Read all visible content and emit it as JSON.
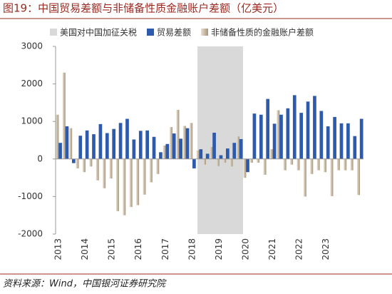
{
  "chart_data": {
    "type": "bar",
    "title": "图19：中国贸易差额与非储备性质金融账户差额（亿美元）",
    "source": "资料来源：Wind，中国银河证券研究院",
    "x": [
      2013,
      2013.25,
      2013.5,
      2013.75,
      2014,
      2014.25,
      2014.5,
      2014.75,
      2015,
      2015.25,
      2015.5,
      2015.75,
      2016,
      2016.25,
      2016.5,
      2016.75,
      2017,
      2017.25,
      2017.5,
      2017.75,
      2018,
      2018.25,
      2018.5,
      2018.75,
      2019,
      2019.25,
      2019.5,
      2019.75,
      2020,
      2020.25,
      2020.5,
      2020.75,
      2021,
      2021.25,
      2021.5,
      2021.75,
      2022,
      2022.25,
      2022.5,
      2022.75,
      2023,
      2023.25,
      2023.5,
      2023.75,
      2024,
      2024.25
    ],
    "xlim": [
      2013,
      2024.5
    ],
    "xticks": [
      2013,
      2014,
      2015,
      2016,
      2017,
      2018,
      2019,
      2020,
      2021,
      2022,
      2023
    ],
    "ylim": [
      -2000,
      3000
    ],
    "yticks": [
      -2000,
      -1000,
      0,
      1000,
      2000,
      3000
    ],
    "shade": {
      "name": "美国对中国加征关税",
      "color": "#d9d9d9",
      "span": [
        2018.3,
        2020
      ]
    },
    "series": [
      {
        "name": "非储备性质的金融账户差额",
        "color": "#c4b49a",
        "values": [
          1180,
          2300,
          820,
          -250,
          -350,
          -200,
          -570,
          -780,
          -520,
          -1390,
          -1500,
          -1280,
          -1230,
          -950,
          -620,
          -400,
          360,
          850,
          1310,
          880,
          960,
          230,
          -150,
          320,
          -190,
          -100,
          -200,
          600,
          -500,
          -100,
          -100,
          -420,
          260,
          1300,
          -300,
          -150,
          -300,
          -1000,
          -400,
          -300,
          -350,
          -990,
          -300,
          -300,
          -300,
          -960
        ]
      },
      {
        "name": "贸易差额",
        "color": "#2e5aac",
        "values": [
          430,
          870,
          -110,
          620,
          760,
          660,
          930,
          690,
          800,
          960,
          1070,
          520,
          750,
          760,
          590,
          180,
          400,
          680,
          540,
          820,
          -250,
          260,
          140,
          700,
          100,
          280,
          430,
          530,
          -350,
          1210,
          1180,
          1600,
          940,
          1180,
          1350,
          1700,
          1230,
          1530,
          1680,
          1280,
          870,
          1120,
          950,
          950,
          610,
          1070
        ]
      }
    ]
  }
}
